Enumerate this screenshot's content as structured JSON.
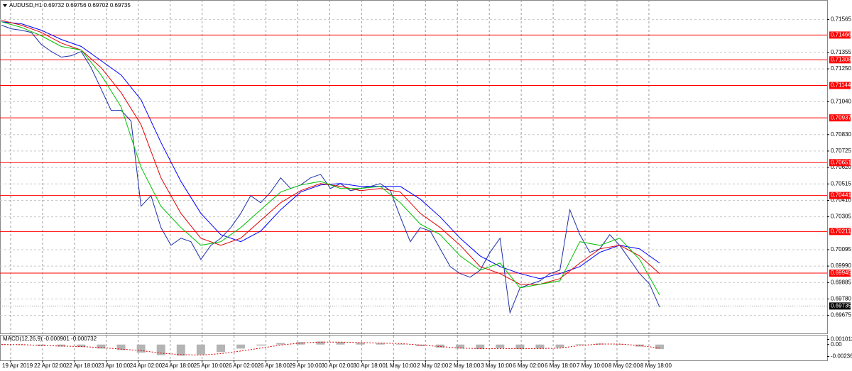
{
  "chart_data": [
    {
      "type": "line",
      "title": "AUDUSD,H1 0.69732 0.69756 0.69702 0.69735",
      "xlim": [
        0,
        414
      ],
      "xticks": [
        {
          "value": 0,
          "label": "19 Apr 2019"
        },
        {
          "value": 16,
          "label": "22 Apr 02:00"
        },
        {
          "value": 32,
          "label": "22 Apr 18:00"
        },
        {
          "value": 48,
          "label": "23 Apr 10:00"
        },
        {
          "value": 64,
          "label": "24 Apr 02:00"
        },
        {
          "value": 80,
          "label": "24 Apr 18:00"
        },
        {
          "value": 96,
          "label": "25 Apr 10:00"
        },
        {
          "value": 112,
          "label": "26 Apr 02:00"
        },
        {
          "value": 128,
          "label": "26 Apr 18:00"
        },
        {
          "value": 144,
          "label": "29 Apr 10:00"
        },
        {
          "value": 160,
          "label": "30 Apr 02:00"
        },
        {
          "value": 176,
          "label": "30 Apr 18:00"
        },
        {
          "value": 192,
          "label": "1 May 10:00"
        },
        {
          "value": 208,
          "label": "2 May 02:00"
        },
        {
          "value": 224,
          "label": "2 May 18:00"
        },
        {
          "value": 240,
          "label": "3 May 10:00"
        },
        {
          "value": 256,
          "label": "6 May 02:00"
        },
        {
          "value": 272,
          "label": "6 May 18:00"
        },
        {
          "value": 288,
          "label": "7 May 10:00"
        },
        {
          "value": 304,
          "label": "8 May 02:00"
        },
        {
          "value": 320,
          "label": "8 May 18:00"
        }
      ],
      "ylim": [
        0.6956,
        0.7169
      ],
      "yticks": [
        0.71565,
        0.71355,
        {
          "value": 0.7125,
          "label": "0.71250"
        },
        {
          "value": 0.7104,
          "label": "0.71040"
        },
        {
          "value": 0.7083,
          "label": "0.70830"
        },
        0.70725,
        {
          "value": 0.7062,
          "label": "0.70620"
        },
        0.70515,
        {
          "value": 0.7041,
          "label": "0.70410"
        },
        0.70305,
        0.70095,
        {
          "value": 0.6999,
          "label": "0.69990"
        },
        0.69885,
        {
          "value": 0.6978,
          "label": "0.69780"
        },
        0.69675
      ],
      "grid": true,
      "levels": [
        0.71466,
        0.71308,
        0.71144,
        0.70937,
        0.70651,
        0.70441,
        0.70211,
        0.69945
      ],
      "level_color": "#ff0000",
      "last": 0.69735,
      "series": [
        {
          "color": "#1e2fa8",
          "x": [
            0,
            5,
            10,
            15,
            20,
            25,
            30,
            35,
            40,
            45,
            50,
            55,
            60,
            65,
            70,
            75,
            80,
            85,
            90,
            95,
            100,
            105,
            110,
            115,
            120,
            125,
            130,
            135,
            140,
            145,
            150,
            155,
            160,
            165,
            170,
            175,
            180,
            185,
            190,
            195,
            200,
            205,
            210,
            215,
            220,
            225,
            230,
            235,
            240,
            245,
            250,
            255,
            260,
            265,
            270,
            275,
            280,
            285,
            290,
            295,
            300,
            305,
            310,
            315,
            320,
            325,
            330
          ],
          "values": [
            0.71529,
            0.71506,
            0.71497,
            0.71483,
            0.71406,
            0.71361,
            0.71325,
            0.71334,
            0.71361,
            0.71257,
            0.71121,
            0.70985,
            0.70985,
            0.70917,
            0.70372,
            0.7044,
            0.70236,
            0.70123,
            0.70168,
            0.70146,
            0.70032,
            0.70123,
            0.70168,
            0.70236,
            0.70327,
            0.7044,
            0.70395,
            0.70463,
            0.70554,
            0.70486,
            0.70508,
            0.70554,
            0.70576,
            0.70486,
            0.70517,
            0.70472,
            0.70486,
            0.70499,
            0.70517,
            0.70472,
            0.70304,
            0.70146,
            0.70236,
            0.70214,
            0.701,
            0.69987,
            0.69942,
            0.69919,
            0.69964,
            0.70078,
            0.70168,
            0.69692,
            0.69851,
            0.69874,
            0.69896,
            0.69942,
            0.69964,
            0.7035,
            0.70191,
            0.70078,
            0.701,
            0.70191,
            0.70123,
            0.70032,
            0.69942,
            0.69874,
            0.69728
          ]
        },
        {
          "color": "#0000ff",
          "x": [
            0,
            10,
            20,
            30,
            40,
            50,
            60,
            70,
            80,
            90,
            100,
            110,
            120,
            130,
            140,
            150,
            160,
            170,
            180,
            190,
            200,
            210,
            220,
            230,
            240,
            250,
            260,
            270,
            280,
            290,
            300,
            310,
            320,
            330
          ],
          "values": [
            0.71551,
            0.71538,
            0.71497,
            0.71438,
            0.71393,
            0.71302,
            0.71211,
            0.71053,
            0.7078,
            0.70531,
            0.70327,
            0.70191,
            0.70146,
            0.70214,
            0.7035,
            0.70463,
            0.70508,
            0.70517,
            0.70499,
            0.70499,
            0.70499,
            0.70418,
            0.70304,
            0.70168,
            0.70055,
            0.69987,
            0.69942,
            0.6991,
            0.69942,
            0.69987,
            0.70078,
            0.70123,
            0.701,
            0.70009
          ]
        },
        {
          "color": "#e00000",
          "x": [
            0,
            10,
            20,
            30,
            40,
            50,
            60,
            70,
            80,
            90,
            100,
            110,
            120,
            130,
            140,
            150,
            160,
            170,
            180,
            190,
            200,
            210,
            220,
            230,
            240,
            250,
            260,
            270,
            280,
            290,
            300,
            310,
            320,
            330
          ],
          "values": [
            0.7156,
            0.71529,
            0.71483,
            0.71415,
            0.7137,
            0.71257,
            0.71098,
            0.70894,
            0.70554,
            0.70327,
            0.70168,
            0.70123,
            0.70168,
            0.70282,
            0.70395,
            0.70472,
            0.70517,
            0.70499,
            0.70472,
            0.70486,
            0.70463,
            0.70327,
            0.70236,
            0.70123,
            0.69987,
            0.69942,
            0.69874,
            0.69874,
            0.6991,
            0.70009,
            0.701,
            0.70123,
            0.70055,
            0.69942
          ]
        },
        {
          "color": "#00c000",
          "x": [
            0,
            10,
            20,
            30,
            40,
            50,
            60,
            70,
            80,
            90,
            100,
            110,
            120,
            130,
            140,
            150,
            160,
            170,
            180,
            190,
            200,
            210,
            220,
            230,
            240,
            250,
            260,
            270,
            280,
            290,
            300,
            310,
            320,
            330
          ],
          "values": [
            0.71551,
            0.71515,
            0.71461,
            0.71393,
            0.7137,
            0.71211,
            0.71007,
            0.70622,
            0.70372,
            0.70236,
            0.70123,
            0.70146,
            0.70236,
            0.7035,
            0.70463,
            0.70508,
            0.70531,
            0.70486,
            0.70486,
            0.70499,
            0.70395,
            0.70259,
            0.70191,
            0.70055,
            0.69964,
            0.70009,
            0.69851,
            0.69874,
            0.69896,
            0.70146,
            0.70123,
            0.70168,
            0.70032,
            0.69805
          ]
        }
      ]
    },
    {
      "type": "macd",
      "title": "MACD(12,26,9) -0.000901 -0.000732",
      "xlim": [
        0,
        414
      ],
      "ylim": [
        -0.00314,
        0.00179
      ],
      "yticks": [
        0.001013,
        {
          "value": 0,
          "label": "0.00"
        },
        -0.002364
      ],
      "series": [
        {
          "type": "bar",
          "color": "#b4b4b4",
          "x": [
            0,
            10,
            20,
            30,
            40,
            50,
            60,
            70,
            80,
            90,
            100,
            110,
            120,
            130,
            140,
            150,
            160,
            170,
            180,
            190,
            200,
            210,
            220,
            230,
            240,
            250,
            260,
            270,
            280,
            290,
            300,
            310,
            320,
            330
          ],
          "values": [
            0.0001,
            -0.0001,
            -0.0003,
            -0.0004,
            -0.0005,
            -0.0008,
            -0.0011,
            -0.0016,
            -0.0021,
            -0.0022,
            -0.002,
            -0.0015,
            -0.0008,
            -0.0002,
            0.0003,
            0.0005,
            0.0006,
            0.0005,
            0.0004,
            0.0003,
            0.0001,
            -0.0003,
            -0.0006,
            -0.0008,
            -0.0009,
            -0.0007,
            -0.0009,
            -0.0008,
            -0.0006,
            0.0001,
            0.0002,
            0.0001,
            -0.0004,
            -0.0009
          ]
        },
        {
          "type": "line",
          "color": "#e00000",
          "x": [
            0,
            10,
            20,
            30,
            40,
            50,
            60,
            70,
            80,
            90,
            100,
            110,
            120,
            130,
            140,
            150,
            160,
            170,
            180,
            190,
            200,
            210,
            220,
            230,
            240,
            250,
            260,
            270,
            280,
            290,
            300,
            310,
            320,
            330
          ],
          "values": [
            0,
            0,
            -0.0002,
            -0.0003,
            -0.0004,
            -0.0006,
            -0.0009,
            -0.0012,
            -0.0017,
            -0.002,
            -0.0021,
            -0.0018,
            -0.0013,
            -0.0007,
            -0.0001,
            0.0003,
            0.0005,
            0.0005,
            0.0004,
            0.0003,
            0.0002,
            -0.0001,
            -0.0004,
            -0.0007,
            -0.0008,
            -0.0008,
            -0.0008,
            -0.0008,
            -0.0007,
            -0.0002,
            0.0001,
            0.0001,
            -0.0002,
            -0.0007
          ]
        }
      ]
    }
  ]
}
